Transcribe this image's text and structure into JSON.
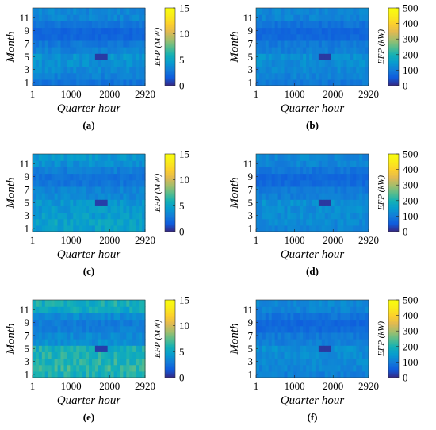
{
  "chart_data": [
    {
      "id": "a",
      "type": "heatmap",
      "panel_label": "(a)",
      "xlabel": "Quarter hour",
      "ylabel": "Month",
      "x_ticks": [
        "1",
        "1000",
        "2000",
        "2920"
      ],
      "y_ticks": [
        "1",
        "3",
        "5",
        "7",
        "9",
        "11"
      ],
      "xlim": [
        1,
        2920
      ],
      "ylim": [
        1,
        12
      ],
      "colorbar": {
        "label": "EFP (MW)",
        "range": [
          0,
          15
        ],
        "ticks": [
          "0",
          "5",
          "10",
          "15"
        ],
        "colormap": "parula"
      },
      "monthly_level": [
        2.6,
        3.2,
        3.6,
        3.9,
        4.1,
        3.2,
        2.8,
        2.0,
        1.9,
        2.6,
        3.4,
        3.5
      ],
      "low_region": {
        "month": 5,
        "quarter_hour_range": [
          1600,
          1950
        ],
        "value": 0.5
      }
    },
    {
      "id": "b",
      "type": "heatmap",
      "panel_label": "(b)",
      "xlabel": "Quarter hour",
      "ylabel": "Month",
      "x_ticks": [
        "1",
        "1000",
        "2000",
        "2920"
      ],
      "y_ticks": [
        "1",
        "3",
        "5",
        "7",
        "9",
        "11"
      ],
      "xlim": [
        1,
        2920
      ],
      "ylim": [
        1,
        12
      ],
      "colorbar": {
        "label": "EFP (kW)",
        "range": [
          0,
          500
        ],
        "ticks": [
          "0",
          "100",
          "200",
          "300",
          "400",
          "500"
        ],
        "colormap": "parula"
      },
      "monthly_level": [
        95,
        110,
        120,
        125,
        130,
        105,
        95,
        70,
        65,
        85,
        110,
        115
      ],
      "low_region": {
        "month": 5,
        "quarter_hour_range": [
          1600,
          1950
        ],
        "value": 15
      }
    },
    {
      "id": "c",
      "type": "heatmap",
      "panel_label": "(c)",
      "xlabel": "Quarter hour",
      "ylabel": "Month",
      "x_ticks": [
        "1",
        "1000",
        "2000",
        "2920"
      ],
      "y_ticks": [
        "1",
        "3",
        "5",
        "7",
        "9",
        "11"
      ],
      "xlim": [
        1,
        2920
      ],
      "ylim": [
        1,
        12
      ],
      "colorbar": {
        "label": "EFP (MW)",
        "range": [
          0,
          15
        ],
        "ticks": [
          "0",
          "5",
          "10",
          "15"
        ],
        "colormap": "parula"
      },
      "monthly_level": [
        4.8,
        5.0,
        4.6,
        4.4,
        4.2,
        3.6,
        3.3,
        2.7,
        2.6,
        3.1,
        3.9,
        4.3
      ],
      "low_region": {
        "month": 5,
        "quarter_hour_range": [
          1600,
          1950
        ],
        "value": 0.6
      }
    },
    {
      "id": "d",
      "type": "heatmap",
      "panel_label": "(d)",
      "xlabel": "Quarter hour",
      "ylabel": "Month",
      "x_ticks": [
        "1",
        "1000",
        "2000",
        "2920"
      ],
      "y_ticks": [
        "1",
        "3",
        "5",
        "7",
        "9",
        "11"
      ],
      "xlim": [
        1,
        2920
      ],
      "ylim": [
        1,
        12
      ],
      "colorbar": {
        "label": "EFP (kW)",
        "range": [
          0,
          500
        ],
        "ticks": [
          "0",
          "100",
          "200",
          "300",
          "400",
          "500"
        ],
        "colormap": "parula"
      },
      "monthly_level": [
        110,
        120,
        125,
        125,
        130,
        105,
        95,
        72,
        68,
        88,
        112,
        118
      ],
      "low_region": {
        "month": 5,
        "quarter_hour_range": [
          1600,
          1950
        ],
        "value": 15
      }
    },
    {
      "id": "e",
      "type": "heatmap",
      "panel_label": "(e)",
      "xlabel": "Quarter hour",
      "ylabel": "Month",
      "x_ticks": [
        "1",
        "1000",
        "2000",
        "2920"
      ],
      "y_ticks": [
        "1",
        "3",
        "5",
        "7",
        "9",
        "11"
      ],
      "xlim": [
        1,
        2920
      ],
      "ylim": [
        1,
        12
      ],
      "colorbar": {
        "label": "EFP (MW)",
        "range": [
          0,
          15
        ],
        "ticks": [
          "0",
          "5",
          "10",
          "15"
        ],
        "colormap": "parula"
      },
      "monthly_level": [
        6.0,
        6.4,
        6.2,
        6.0,
        5.8,
        3.9,
        3.6,
        3.1,
        3.0,
        3.7,
        5.3,
        5.8
      ],
      "low_region": {
        "month": 5,
        "quarter_hour_range": [
          1600,
          1950
        ],
        "value": 0.6
      }
    },
    {
      "id": "f",
      "type": "heatmap",
      "panel_label": "(f)",
      "xlabel": "Quarter hour",
      "ylabel": "Month",
      "x_ticks": [
        "1",
        "1000",
        "2000",
        "2920"
      ],
      "y_ticks": [
        "1",
        "3",
        "5",
        "7",
        "9",
        "11"
      ],
      "xlim": [
        1,
        2920
      ],
      "ylim": [
        1,
        12
      ],
      "colorbar": {
        "label": "EFP (kW)",
        "range": [
          0,
          500
        ],
        "ticks": [
          "0",
          "100",
          "200",
          "300",
          "400",
          "500"
        ],
        "colormap": "parula"
      },
      "monthly_level": [
        105,
        115,
        120,
        122,
        128,
        104,
        94,
        72,
        66,
        86,
        110,
        116
      ],
      "low_region": {
        "month": 5,
        "quarter_hour_range": [
          1600,
          1950
        ],
        "value": 15
      }
    }
  ]
}
